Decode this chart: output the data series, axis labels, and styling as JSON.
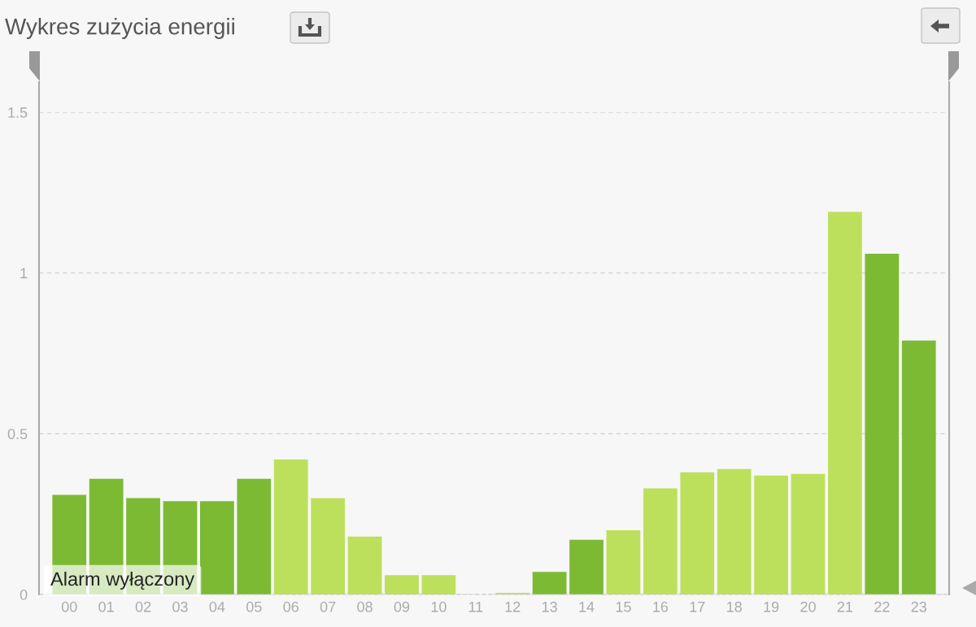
{
  "chart_data": {
    "type": "bar",
    "title": "Wykres zużycia energii",
    "categories": [
      "00",
      "01",
      "02",
      "03",
      "04",
      "05",
      "06",
      "07",
      "08",
      "09",
      "10",
      "11",
      "12",
      "13",
      "14",
      "15",
      "16",
      "17",
      "18",
      "19",
      "20",
      "21",
      "22",
      "23"
    ],
    "values": [
      0.31,
      0.36,
      0.3,
      0.29,
      0.29,
      0.36,
      0.42,
      0.3,
      0.18,
      0.06,
      0.06,
      0,
      0.005,
      0.07,
      0.17,
      0.2,
      0.33,
      0.38,
      0.39,
      0.37,
      0.375,
      1.19,
      1.06,
      0.79
    ],
    "colors": [
      "#7dba34",
      "#7dba34",
      "#7dba34",
      "#7dba34",
      "#7dba34",
      "#7dba34",
      "#bde05c",
      "#bde05c",
      "#bde05c",
      "#bde05c",
      "#bde05c",
      "#bde05c",
      "#bde05c",
      "#7dba34",
      "#7dba34",
      "#bde05c",
      "#bde05c",
      "#bde05c",
      "#bde05c",
      "#bde05c",
      "#bde05c",
      "#bde05c",
      "#7dba34",
      "#7dba34"
    ],
    "ylim": [
      0,
      1.5
    ],
    "yticks": [
      0,
      0.5,
      1,
      1.5
    ],
    "grid": "y",
    "annotations": [
      "Alarm wyłączony"
    ]
  }
}
